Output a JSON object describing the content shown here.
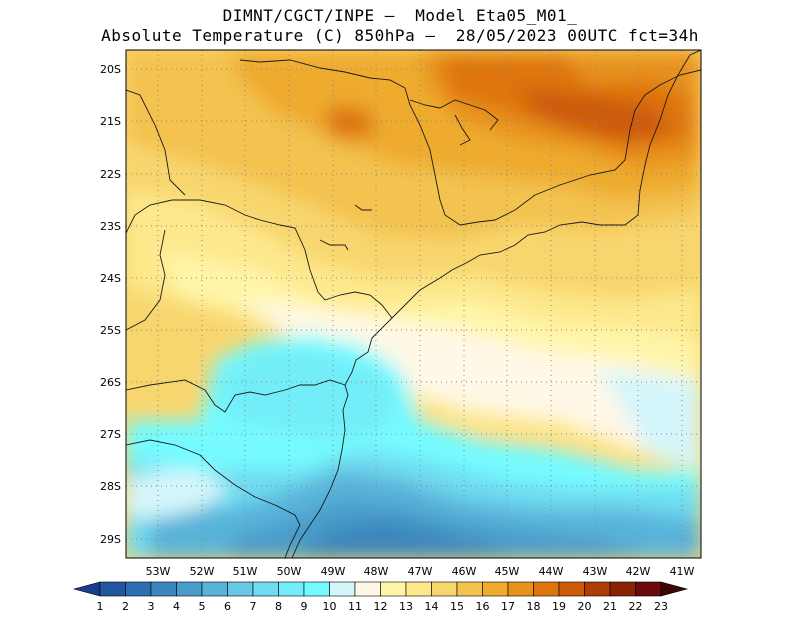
{
  "header": {
    "line1": "DIMNT/CGCT/INPE –  Model Eta05_M01_",
    "line2": "Absolute Temperature (C) 850hPa –  28/05/2023 00UTC fct=34h"
  },
  "map": {
    "lat_labels": [
      "20S",
      "21S",
      "22S",
      "23S",
      "24S",
      "25S",
      "26S",
      "27S",
      "28S",
      "29S"
    ],
    "lon_labels": [
      "53W",
      "52W",
      "51W",
      "50W",
      "49W",
      "48W",
      "47W",
      "46W",
      "45W",
      "44W",
      "43W",
      "42W",
      "41W"
    ],
    "field": "temperature",
    "extent": {
      "lon": [
        -53.6,
        -40.6
      ],
      "lat": [
        -29.4,
        -19.8
      ]
    }
  },
  "colorbar": {
    "labels": [
      "1",
      "2",
      "3",
      "4",
      "5",
      "6",
      "7",
      "8",
      "9",
      "10",
      "11",
      "12",
      "13",
      "14",
      "15",
      "16",
      "17",
      "18",
      "19",
      "20",
      "21",
      "22",
      "23"
    ],
    "colors": [
      "#1a3c8c",
      "#22579f",
      "#2c6eaf",
      "#3a86bd",
      "#4a9ccb",
      "#59b3d9",
      "#66c8e6",
      "#6fdaf0",
      "#73eef8",
      "#75fbff",
      "#d4f6fb",
      "#fff8e6",
      "#fff5a8",
      "#fde88c",
      "#f8d66e",
      "#f3c24f",
      "#eeab2d",
      "#e8921a",
      "#de750c",
      "#cc5a07",
      "#ad3d05",
      "#8a2204",
      "#6a0a0a",
      "#3a0606"
    ]
  }
}
